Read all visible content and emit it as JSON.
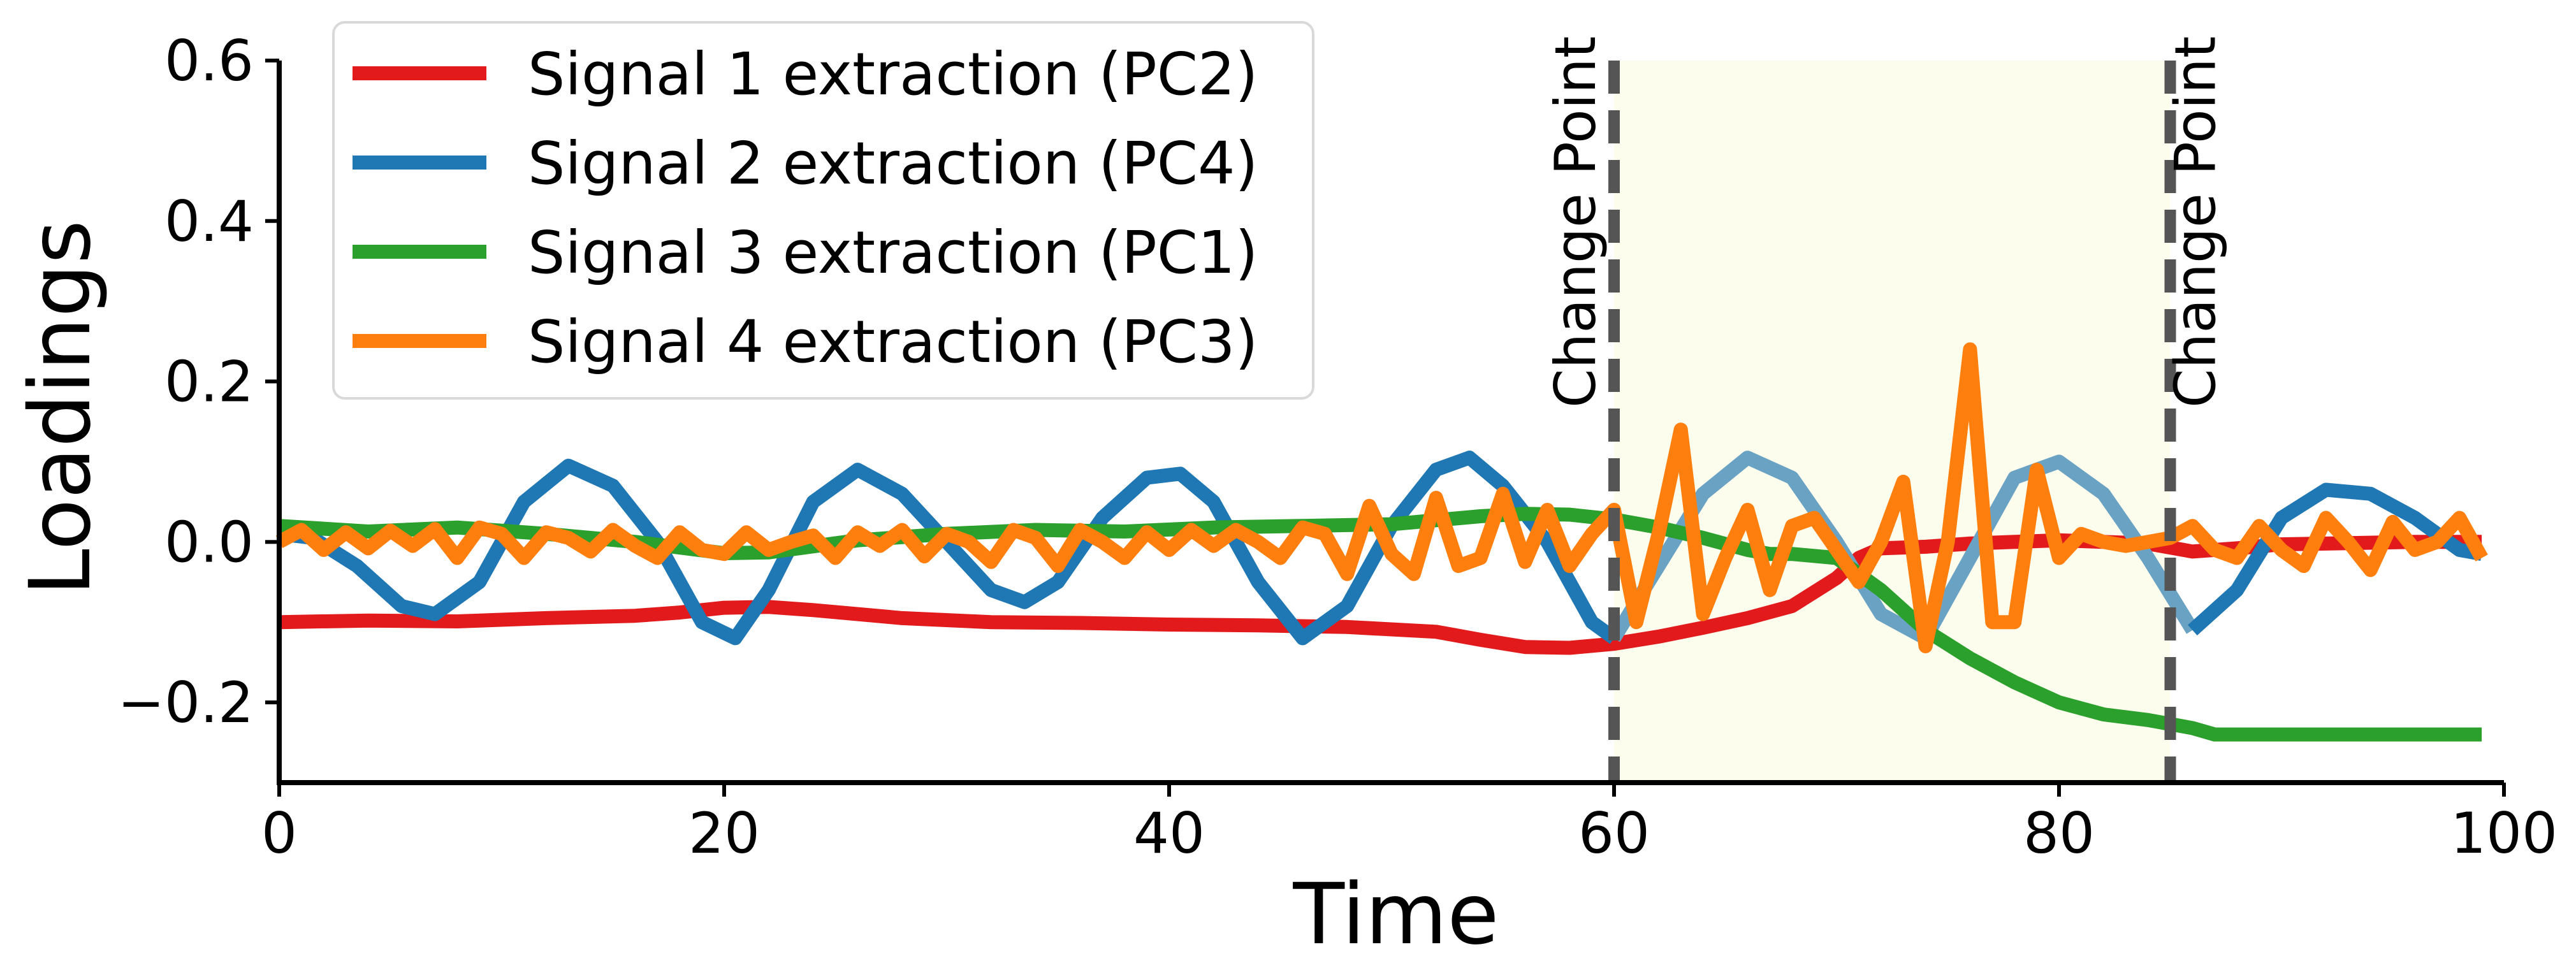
{
  "chart_data": {
    "type": "line",
    "title": "",
    "xlabel": "Time",
    "ylabel": "Loadings",
    "xlim": [
      0,
      100
    ],
    "ylim": [
      -0.3,
      0.6
    ],
    "x_ticks": [
      0,
      20,
      40,
      60,
      80,
      100
    ],
    "x_tick_labels": [
      "0",
      "20",
      "40",
      "60",
      "80",
      "100"
    ],
    "y_ticks": [
      -0.2,
      0.0,
      0.2,
      0.4,
      0.6
    ],
    "y_tick_labels": [
      "−0.2",
      "0.0",
      "0.2",
      "0.4",
      "0.6"
    ],
    "grid": false,
    "legend_position": "top-left",
    "highlight_region": {
      "x": [
        60,
        85
      ],
      "color": "#fdfdee"
    },
    "change_points": [
      {
        "x": 60,
        "label": "Change Point"
      },
      {
        "x": 85,
        "label": "Change Point"
      }
    ],
    "series": [
      {
        "name": "Signal 1 extraction (PC2)",
        "color": "#e31a1c",
        "x": [
          0,
          4,
          8,
          12,
          16,
          18,
          20,
          22,
          24,
          28,
          32,
          36,
          40,
          44,
          48,
          52,
          54,
          56,
          58,
          60,
          62,
          64,
          66,
          68,
          70,
          71,
          72,
          74,
          76,
          78,
          80,
          82,
          84,
          86,
          88,
          90,
          92,
          96,
          99
        ],
        "y": [
          -0.1,
          -0.098,
          -0.099,
          -0.095,
          -0.092,
          -0.088,
          -0.082,
          -0.081,
          -0.085,
          -0.095,
          -0.1,
          -0.101,
          -0.103,
          -0.104,
          -0.106,
          -0.112,
          -0.122,
          -0.131,
          -0.132,
          -0.127,
          -0.118,
          -0.107,
          -0.095,
          -0.08,
          -0.045,
          -0.02,
          -0.008,
          -0.006,
          -0.002,
          0.0,
          0.002,
          0.0,
          -0.002,
          -0.012,
          -0.008,
          -0.003,
          -0.002,
          0.0,
          0.0
        ]
      },
      {
        "name": "Signal 2 extraction (PC4)",
        "color": "#1f77b4",
        "x": [
          0,
          1.5,
          3.5,
          5.5,
          7,
          9,
          11,
          13,
          15,
          17,
          19,
          20.5,
          22,
          24,
          26,
          28,
          30,
          32,
          33.5,
          35,
          37,
          39,
          40.5,
          42,
          44,
          46,
          48,
          50,
          52,
          53.5,
          55,
          57,
          59,
          60
        ],
        "y": [
          0.01,
          0.005,
          -0.03,
          -0.08,
          -0.09,
          -0.05,
          0.05,
          0.095,
          0.07,
          0.0,
          -0.1,
          -0.12,
          -0.06,
          0.05,
          0.09,
          0.06,
          0.0,
          -0.06,
          -0.075,
          -0.05,
          0.03,
          0.08,
          0.085,
          0.05,
          -0.05,
          -0.12,
          -0.08,
          0.02,
          0.09,
          0.105,
          0.07,
          0.0,
          -0.1,
          -0.12
        ]
      },
      {
        "name": "Signal 2 extraction (PC4)",
        "color": "#6aa2c4",
        "x": [
          60,
          62,
          64,
          66,
          68,
          70,
          72,
          74,
          76,
          78,
          80,
          82,
          84,
          86
        ],
        "y": [
          -0.12,
          -0.03,
          0.06,
          0.105,
          0.08,
          0.0,
          -0.09,
          -0.12,
          -0.02,
          0.08,
          0.1,
          0.06,
          -0.02,
          -0.11
        ]
      },
      {
        "name": "Signal 2 extraction (PC4)",
        "color": "#1f77b4",
        "x": [
          86,
          88,
          90,
          92,
          94,
          96,
          98,
          99
        ],
        "y": [
          -0.11,
          -0.06,
          0.03,
          0.065,
          0.06,
          0.03,
          -0.01,
          -0.015
        ]
      },
      {
        "name": "Signal 3 extraction (PC1)",
        "color": "#2ca02c",
        "x": [
          0,
          4,
          8,
          12,
          16,
          20,
          22,
          26,
          30,
          34,
          38,
          42,
          46,
          50,
          54,
          56,
          58,
          60,
          62,
          64,
          66,
          67,
          68,
          70,
          72,
          74,
          76,
          78,
          80,
          82,
          84,
          86,
          87,
          90,
          94,
          99
        ],
        "y": [
          0.02,
          0.013,
          0.018,
          0.01,
          0.0,
          -0.014,
          -0.013,
          0.002,
          0.01,
          0.015,
          0.013,
          0.018,
          0.02,
          0.022,
          0.032,
          0.035,
          0.034,
          0.028,
          0.018,
          0.005,
          -0.01,
          -0.015,
          -0.015,
          -0.02,
          -0.06,
          -0.11,
          -0.145,
          -0.175,
          -0.2,
          -0.215,
          -0.222,
          -0.232,
          -0.24,
          -0.24,
          -0.24,
          -0.24
        ]
      },
      {
        "name": "Signal 4 extraction (PC3)",
        "color": "#ff7f0e",
        "x": [
          0,
          1,
          2,
          3,
          4,
          5,
          6,
          7,
          8,
          9,
          10,
          11,
          12,
          13,
          14,
          15,
          16,
          17,
          18,
          19,
          20,
          21,
          22,
          23,
          24,
          25,
          26,
          27,
          28,
          29,
          30,
          31,
          32,
          33,
          34,
          35,
          36,
          37,
          38,
          39,
          40,
          41,
          42,
          43,
          44,
          45,
          46,
          47,
          48,
          49,
          50,
          51,
          52,
          53,
          54,
          55,
          56,
          57,
          58,
          59,
          60,
          61,
          62,
          63,
          64,
          65,
          66,
          67,
          68,
          69,
          70,
          71,
          72,
          73,
          74,
          75,
          76,
          77,
          78,
          79,
          80,
          81,
          82,
          83,
          84,
          85,
          86,
          87,
          88,
          89,
          90,
          91,
          92,
          93,
          94,
          95,
          96,
          97,
          98,
          99
        ],
        "y": [
          0.0,
          0.015,
          -0.01,
          0.012,
          -0.008,
          0.014,
          -0.005,
          0.016,
          -0.02,
          0.018,
          0.01,
          -0.02,
          0.012,
          0.005,
          -0.012,
          0.015,
          -0.005,
          -0.02,
          0.012,
          -0.01,
          -0.015,
          0.012,
          -0.01,
          0.0,
          0.008,
          -0.02,
          0.012,
          -0.005,
          0.015,
          -0.018,
          0.01,
          0.0,
          -0.025,
          0.015,
          0.005,
          -0.03,
          0.015,
          0.0,
          -0.02,
          0.012,
          -0.01,
          0.015,
          -0.005,
          0.015,
          0.0,
          -0.02,
          0.018,
          0.01,
          -0.04,
          0.045,
          -0.015,
          -0.04,
          0.055,
          -0.03,
          -0.02,
          0.06,
          -0.025,
          0.04,
          -0.03,
          0.01,
          0.04,
          -0.1,
          0.01,
          0.14,
          -0.09,
          -0.02,
          0.04,
          -0.06,
          0.02,
          0.03,
          -0.01,
          -0.05,
          0.0,
          0.075,
          -0.13,
          0.0,
          0.24,
          -0.1,
          -0.1,
          0.09,
          -0.02,
          0.01,
          0.0,
          -0.005,
          0.0,
          0.005,
          0.02,
          -0.01,
          -0.02,
          0.02,
          -0.01,
          -0.03,
          0.03,
          0.0,
          -0.035,
          0.025,
          -0.01,
          0.0,
          0.03,
          -0.02
        ]
      }
    ],
    "legend": [
      {
        "label": "Signal 1 extraction (PC2)",
        "color": "#e31a1c"
      },
      {
        "label": "Signal 2 extraction (PC4)",
        "color": "#1f77b4"
      },
      {
        "label": "Signal 3 extraction (PC1)",
        "color": "#2ca02c"
      },
      {
        "label": "Signal 4 extraction (PC3)",
        "color": "#ff7f0e"
      }
    ]
  }
}
